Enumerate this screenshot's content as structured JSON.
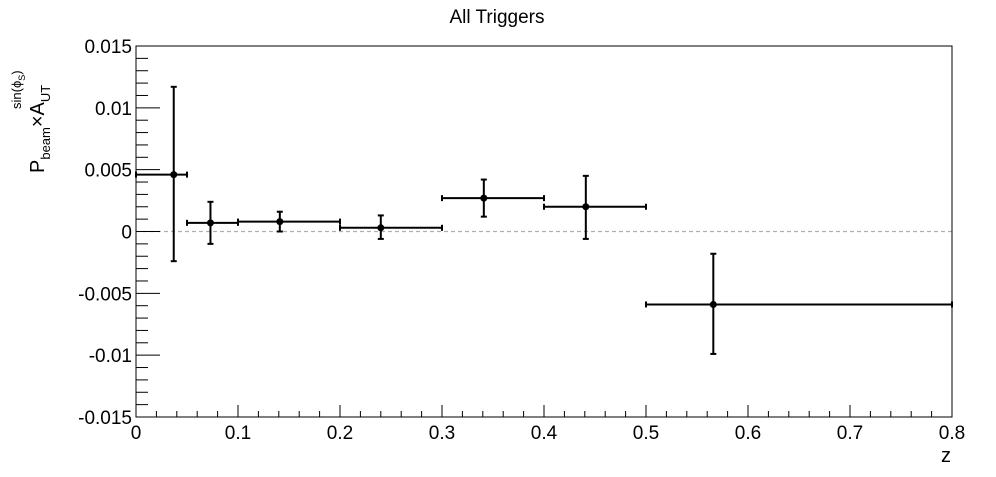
{
  "chart_data": {
    "type": "scatter",
    "title": "All Triggers",
    "xlabel": "z",
    "ylabel": {
      "main_1": "P",
      "sub_1": "beam",
      "main_2": "×A",
      "sub_2": "UT",
      "sup": "sin(ϕ",
      "sup_sub": "S",
      "sup_close": ")"
    },
    "xlim": [
      0,
      0.8
    ],
    "ylim": [
      -0.015,
      0.015
    ],
    "x_ticks": [
      "0",
      "0.1",
      "0.2",
      "0.3",
      "0.4",
      "0.5",
      "0.6",
      "0.7",
      "0.8"
    ],
    "y_ticks": [
      "-0.015",
      "-0.01",
      "-0.005",
      "0",
      "0.005",
      "0.01",
      "0.015"
    ],
    "reference_line": {
      "y": 0,
      "style": "dashed",
      "color": "#b0b0b0"
    },
    "series": [
      {
        "points": [
          {
            "x": 0.037,
            "xlow": 0.0,
            "xhigh": 0.05,
            "y": 0.0046,
            "ylow": -0.0024,
            "yhigh": 0.0117
          },
          {
            "x": 0.073,
            "xlow": 0.05,
            "xhigh": 0.1,
            "y": 0.0007,
            "ylow": -0.001,
            "yhigh": 0.0024
          },
          {
            "x": 0.141,
            "xlow": 0.1,
            "xhigh": 0.2,
            "y": 0.0008,
            "ylow": 0.0,
            "yhigh": 0.0016
          },
          {
            "x": 0.24,
            "xlow": 0.2,
            "xhigh": 0.3,
            "y": 0.0003,
            "ylow": -0.0006,
            "yhigh": 0.0013
          },
          {
            "x": 0.341,
            "xlow": 0.3,
            "xhigh": 0.4,
            "y": 0.0027,
            "ylow": 0.0012,
            "yhigh": 0.0042
          },
          {
            "x": 0.441,
            "xlow": 0.4,
            "xhigh": 0.5,
            "y": 0.002,
            "ylow": -0.0006,
            "yhigh": 0.0045
          },
          {
            "x": 0.566,
            "xlow": 0.5,
            "xhigh": 0.8,
            "y": -0.0059,
            "ylow": -0.0099,
            "yhigh": -0.0018
          }
        ]
      }
    ],
    "colors": {
      "axis": "#000000",
      "marker": "#000000",
      "zero_line": "#b0b0b0"
    }
  }
}
